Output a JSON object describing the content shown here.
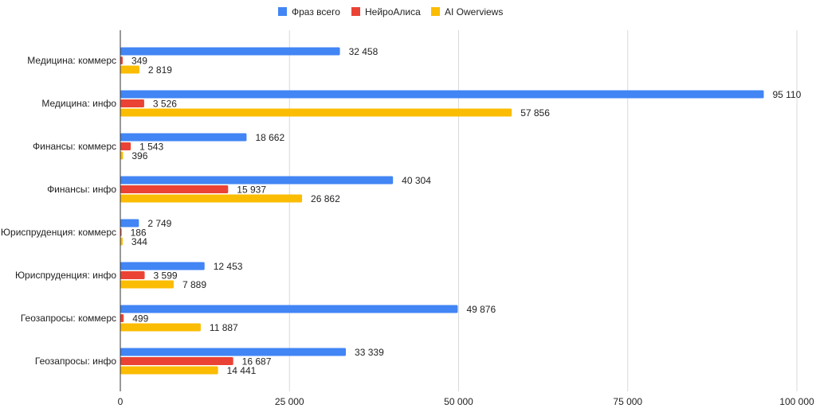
{
  "chart_data": {
    "type": "bar",
    "orientation": "horizontal",
    "title": "",
    "xlabel": "",
    "ylabel": "",
    "xlim": [
      0,
      100000
    ],
    "ticks": [
      0,
      25000,
      50000,
      75000,
      100000
    ],
    "tick_labels": [
      "0",
      "25 000",
      "50 000",
      "75 000",
      "100 000"
    ],
    "grid": true,
    "legend_position": "top-center",
    "categories": [
      "Медицина: коммерс",
      "Медицина: инфо",
      "Финансы: коммерс",
      "Финансы: инфо",
      "Юриспруденция: коммерс",
      "Юриспруденция: инфо",
      "Геозапросы: коммерс",
      "Геозапросы: инфо"
    ],
    "series": [
      {
        "name": "Фраз всего",
        "color": "#4285F4",
        "values": [
          32458,
          95110,
          18662,
          40304,
          2749,
          12453,
          49876,
          33339
        ],
        "labels": [
          "32 458",
          "95 110",
          "18 662",
          "40 304",
          "2 749",
          "12 453",
          "49 876",
          "33 339"
        ]
      },
      {
        "name": "НейроАлиса",
        "color": "#EA4335",
        "values": [
          349,
          3526,
          1543,
          15937,
          186,
          3599,
          499,
          16687
        ],
        "labels": [
          "349",
          "3 526",
          "1 543",
          "15 937",
          "186",
          "3 599",
          "499",
          "16 687"
        ]
      },
      {
        "name": "AI Owerviews",
        "color": "#FBBC04",
        "values": [
          2819,
          57856,
          396,
          26862,
          344,
          7889,
          11887,
          14441
        ],
        "labels": [
          "2 819",
          "57 856",
          "396",
          "26 862",
          "344",
          "7 889",
          "11 887",
          "14 441"
        ]
      }
    ]
  }
}
